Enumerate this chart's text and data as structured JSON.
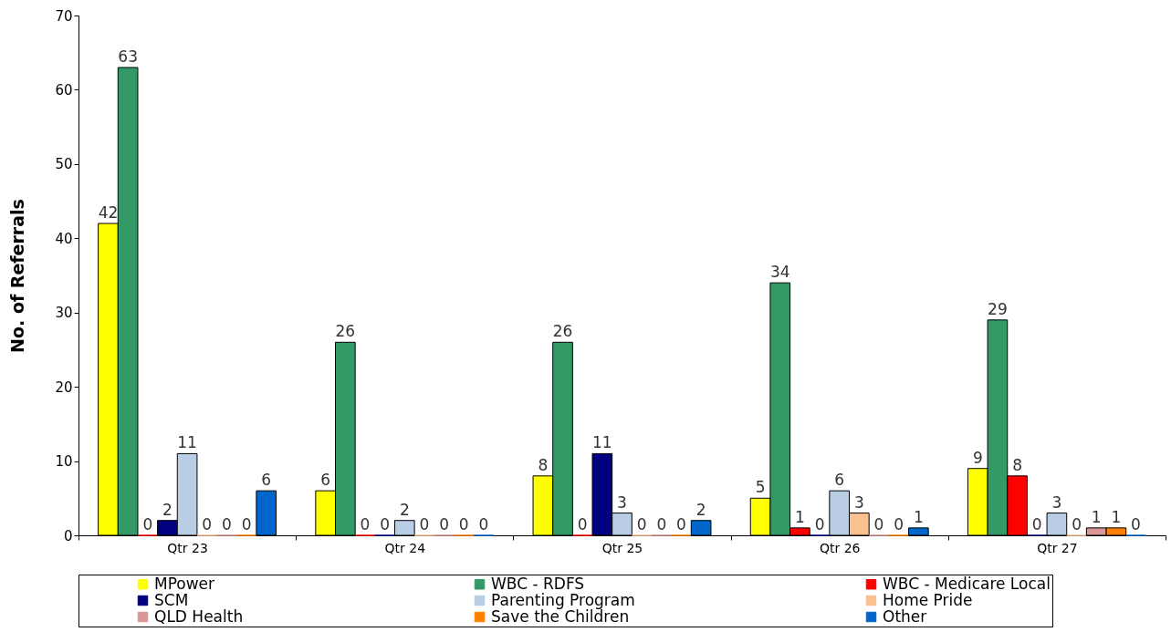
{
  "chart_data": {
    "type": "bar",
    "ylabel": "No. of Referrals",
    "categories": [
      "Qtr 23",
      "Qtr 24",
      "Qtr 25",
      "Qtr 26",
      "Qtr 27"
    ],
    "series": [
      {
        "name": "MPower",
        "color": "#ffff00",
        "values": [
          42,
          6,
          8,
          5,
          9
        ]
      },
      {
        "name": "WBC - RDFS",
        "color": "#339966",
        "values": [
          63,
          26,
          26,
          34,
          29
        ]
      },
      {
        "name": "WBC - Medicare Local",
        "color": "#ff0000",
        "values": [
          0,
          0,
          0,
          1,
          8
        ]
      },
      {
        "name": "SCM",
        "color": "#000080",
        "values": [
          2,
          0,
          11,
          0,
          0
        ]
      },
      {
        "name": "Parenting Program",
        "color": "#b9cde5",
        "values": [
          11,
          2,
          3,
          6,
          3
        ]
      },
      {
        "name": "Home Pride",
        "color": "#fac090",
        "values": [
          0,
          0,
          0,
          3,
          0
        ]
      },
      {
        "name": "QLD Health",
        "color": "#d99694",
        "values": [
          0,
          0,
          0,
          0,
          1
        ]
      },
      {
        "name": "Save the Children",
        "color": "#ff8000",
        "values": [
          0,
          0,
          0,
          0,
          1
        ]
      },
      {
        "name": "Other",
        "color": "#0066cc",
        "values": [
          6,
          0,
          2,
          1,
          0
        ]
      }
    ],
    "ylim": [
      0,
      70
    ],
    "yticks": [
      0,
      10,
      20,
      30,
      40,
      50,
      60,
      70
    ],
    "grid": false,
    "legend": "bottom",
    "data_labels": true
  }
}
